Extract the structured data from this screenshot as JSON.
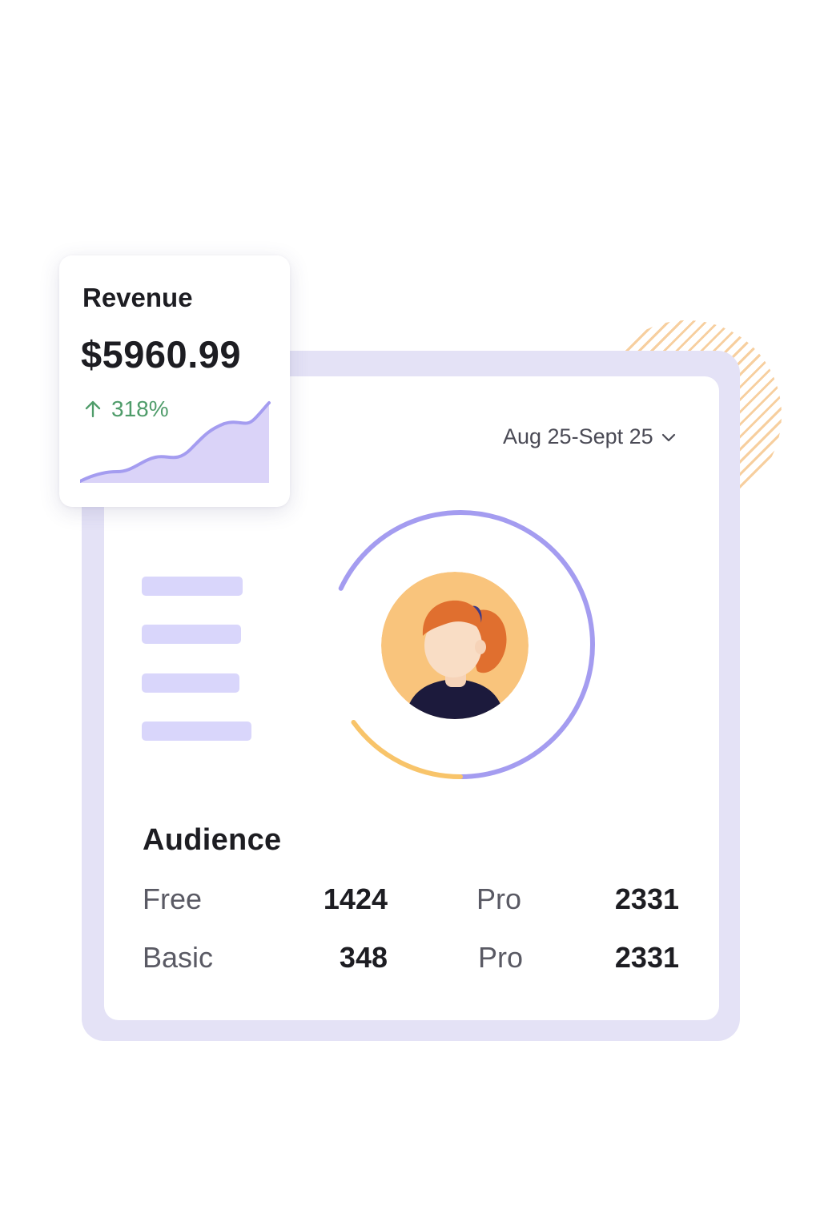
{
  "revenue": {
    "label": "Revenue",
    "value": "$5960.99",
    "change": "318%",
    "change_direction": "up",
    "change_color": "#4f9c6a",
    "trend_icon": "arrow-up-icon"
  },
  "filters": {
    "date_range": "Aug 25-Sept 25",
    "dropdown_icon": "chevron-down-icon"
  },
  "audience": {
    "title": "Audience",
    "rows": [
      {
        "label": "Free",
        "value": "1424"
      },
      {
        "label": "Pro",
        "value": "2331"
      },
      {
        "label": "Basic",
        "value": "348"
      },
      {
        "label": "Pro",
        "value": "2331"
      }
    ]
  },
  "ring": {
    "purple_share": 0.68,
    "yellow_share": 0.15,
    "purple_color": "#a49cf0",
    "yellow_color": "#f8c46a"
  },
  "colors": {
    "accent": "#a49cf0",
    "frame": "#e4e2f6",
    "skeleton": "#d9d6fb",
    "stripe": "#f7cf9f",
    "avatar_background": "#f9c47c"
  }
}
